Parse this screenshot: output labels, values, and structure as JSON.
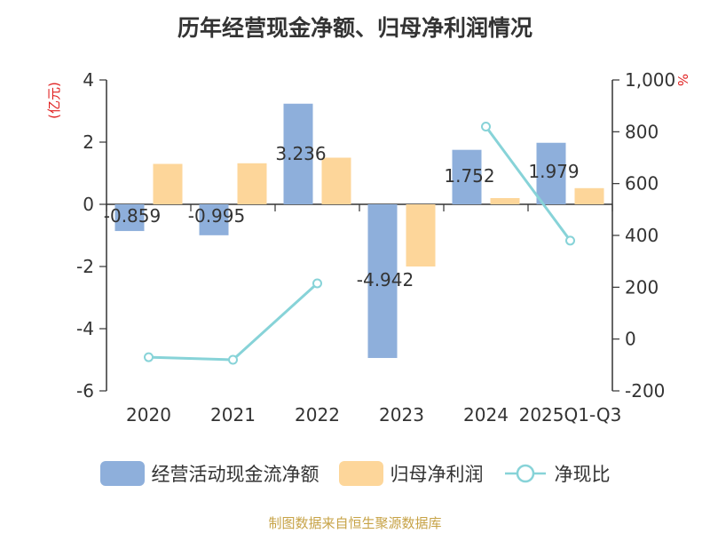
{
  "title": "历年经营现金净额、归母净利润情况",
  "left_axis_unit": "(亿元)",
  "right_axis_unit": "%",
  "source": "制图数据来自恒生聚源数据库",
  "colors": {
    "cash": "#8eafdb",
    "profit": "#fdd69a",
    "ratio": "#87d3d8",
    "unit": "#e02020",
    "source": "#c7a347"
  },
  "legend": {
    "cash": "经营活动现金流净额",
    "profit": "归母净利润",
    "ratio": "净现比"
  },
  "chart_data": {
    "type": "bar",
    "title": "历年经营现金净额、归母净利润情况",
    "categories": [
      "2020",
      "2021",
      "2022",
      "2023",
      "2024",
      "2025Q1-Q3"
    ],
    "series": [
      {
        "name": "经营活动现金流净额",
        "axis": "left",
        "type": "bar",
        "values": [
          -0.859,
          -0.995,
          3.236,
          -4.942,
          1.752,
          1.979
        ],
        "labels": [
          "-0.859",
          "-0.995",
          "3.236",
          "-4.942",
          "1.752",
          "1.979"
        ]
      },
      {
        "name": "归母净利润",
        "axis": "left",
        "type": "bar",
        "values": [
          1.3,
          1.32,
          1.5,
          -2.0,
          0.2,
          0.52
        ]
      },
      {
        "name": "净现比",
        "axis": "right",
        "type": "line",
        "values": [
          -70,
          -80,
          215,
          null,
          820,
          380
        ]
      }
    ],
    "y_left": {
      "ylim": [
        -6,
        4
      ],
      "ticks": [
        -6,
        -4,
        -2,
        0,
        2,
        4
      ],
      "tick_labels": [
        "-6",
        "-4",
        "-2",
        "0",
        "2",
        "4"
      ]
    },
    "y_right": {
      "ylim": [
        -200,
        1000
      ],
      "ticks": [
        -200,
        0,
        200,
        400,
        600,
        800,
        1000
      ],
      "tick_labels": [
        "-200",
        "0",
        "200",
        "400",
        "600",
        "800",
        "1,000"
      ]
    },
    "legend_position": "bottom",
    "grid": false
  }
}
